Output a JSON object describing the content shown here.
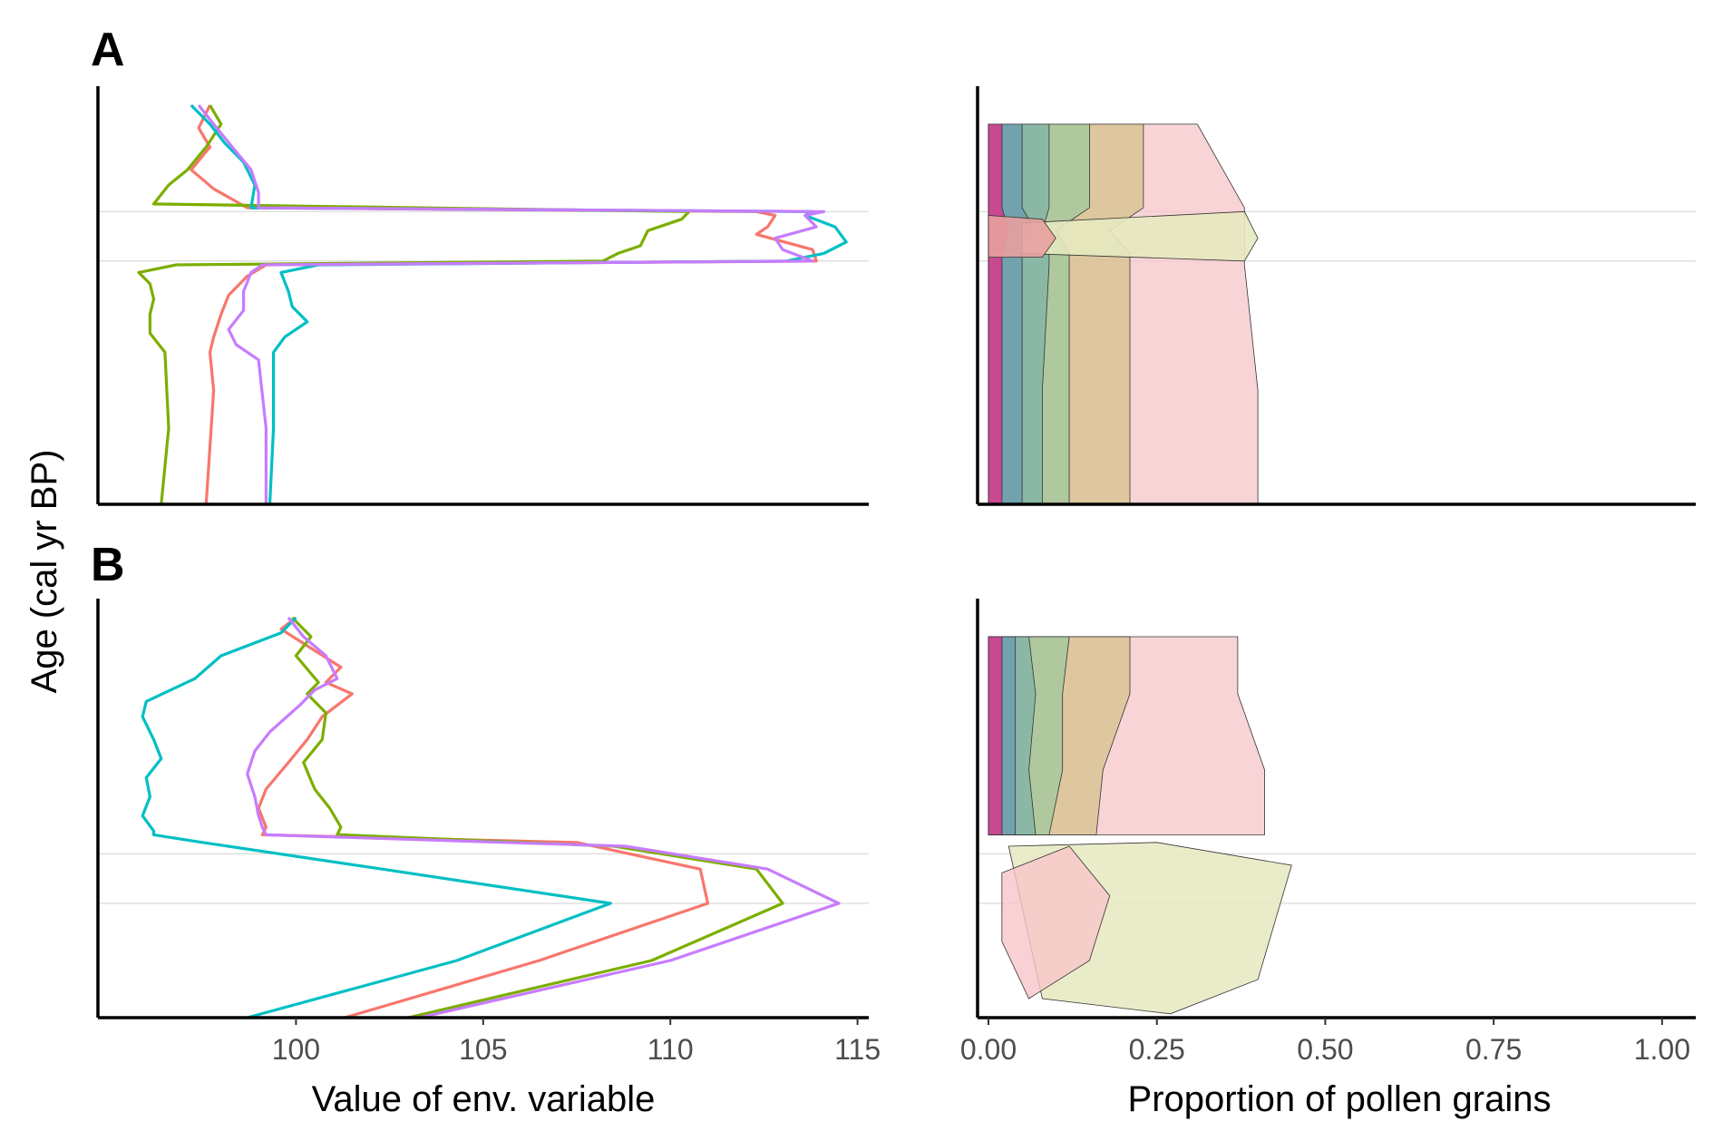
{
  "figure": {
    "ylabel": "Age (cal yr BP)",
    "xlabel_left": "Value of env. variable",
    "xlabel_right": "Proportion of pollen grains",
    "panel_a": "A",
    "panel_b": "B"
  },
  "colors": {
    "red": "#F8766D",
    "green": "#7CAE00",
    "cyan": "#00BFC4",
    "purple": "#C77CFF",
    "axis": "#000000",
    "refline": "#d9d9d9",
    "pollen": [
      "#e7298a",
      "#c51b7d",
      "#b2abd2",
      "#8e6fa1",
      "#6a9bb0",
      "#7fb3a8",
      "#9fc89c",
      "#d4c38c",
      "#f7c6c9",
      "#e6e9bf"
    ]
  },
  "chart_data": [
    {
      "type": "line",
      "panel": "A",
      "xlim": [
        95,
        115.3
      ],
      "xticks": [
        "100",
        "105",
        "110",
        "115"
      ],
      "y_reference": [
        0.77,
        0.64
      ],
      "series": [
        {
          "color": "red",
          "x": [
            97.7,
            97.4,
            97.7,
            97.2,
            97.8,
            98.7,
            112.3,
            112.8,
            112.6,
            112.3,
            113.8,
            113.9,
            99.2,
            98.7,
            98.2,
            98.0,
            97.8,
            97.7,
            97.8,
            97.7,
            97.6
          ],
          "y": [
            1.05,
            0.99,
            0.94,
            0.88,
            0.83,
            0.78,
            0.77,
            0.76,
            0.73,
            0.71,
            0.67,
            0.64,
            0.63,
            0.6,
            0.55,
            0.5,
            0.44,
            0.4,
            0.3,
            0.15,
            0.0
          ]
        },
        {
          "color": "green",
          "x": [
            97.7,
            98.0,
            97.6,
            97.1,
            96.6,
            96.2,
            110.5,
            110.3,
            109.4,
            109.2,
            108.6,
            108.2,
            96.8,
            95.8,
            96.1,
            96.2,
            96.1,
            96.1,
            96.5,
            96.6,
            96.4
          ],
          "y": [
            1.05,
            1.0,
            0.94,
            0.88,
            0.84,
            0.79,
            0.77,
            0.75,
            0.72,
            0.68,
            0.66,
            0.64,
            0.63,
            0.61,
            0.58,
            0.54,
            0.5,
            0.45,
            0.4,
            0.2,
            0.0
          ]
        },
        {
          "color": "cyan",
          "x": [
            97.2,
            97.7,
            98.1,
            98.6,
            98.9,
            98.8,
            113.8,
            113.6,
            114.4,
            114.7,
            114.1,
            113.1,
            100.6,
            99.6,
            99.8,
            99.9,
            100.3,
            99.7,
            99.4,
            99.4,
            99.3
          ],
          "y": [
            1.05,
            1.0,
            0.95,
            0.9,
            0.84,
            0.78,
            0.77,
            0.76,
            0.73,
            0.69,
            0.66,
            0.64,
            0.63,
            0.61,
            0.56,
            0.52,
            0.48,
            0.44,
            0.4,
            0.2,
            0.0
          ]
        },
        {
          "color": "purple",
          "x": [
            97.4,
            97.8,
            98.3,
            98.8,
            99.0,
            99.0,
            114.1,
            113.6,
            113.9,
            112.8,
            113.0,
            113.8,
            99.1,
            98.8,
            98.6,
            98.6,
            98.2,
            98.4,
            99.0,
            99.2,
            99.2
          ],
          "y": [
            1.05,
            1.0,
            0.94,
            0.88,
            0.82,
            0.78,
            0.77,
            0.76,
            0.73,
            0.7,
            0.67,
            0.64,
            0.63,
            0.61,
            0.56,
            0.51,
            0.46,
            0.42,
            0.38,
            0.2,
            0.0
          ]
        }
      ]
    },
    {
      "type": "area",
      "panel": "A",
      "xlim": [
        0,
        1.05
      ],
      "xticks": [
        "0.00",
        "0.25",
        "0.50",
        "0.75",
        "1.00"
      ],
      "y_reference": [
        0.77,
        0.64
      ],
      "stack_tops": [
        {
          "color": "pollen.0",
          "x": [
            0.02,
            0.02,
            0.03,
            0.02,
            0.02,
            0.02,
            0.02
          ],
          "y": [
            1.0,
            0.78,
            0.72,
            0.66,
            0.63,
            0.3,
            0.0
          ]
        },
        {
          "color": "pollen.4",
          "x": [
            0.05,
            0.05,
            0.07,
            0.05,
            0.05,
            0.05,
            0.05
          ],
          "y": [
            1.0,
            0.78,
            0.72,
            0.66,
            0.63,
            0.3,
            0.0
          ]
        },
        {
          "color": "pollen.5",
          "x": [
            0.09,
            0.09,
            0.08,
            0.09,
            0.09,
            0.08,
            0.08
          ],
          "y": [
            1.0,
            0.78,
            0.72,
            0.66,
            0.63,
            0.3,
            0.0
          ]
        },
        {
          "color": "pollen.6",
          "x": [
            0.15,
            0.15,
            0.1,
            0.12,
            0.12,
            0.12,
            0.12
          ],
          "y": [
            1.0,
            0.78,
            0.72,
            0.66,
            0.63,
            0.3,
            0.0
          ]
        },
        {
          "color": "pollen.7",
          "x": [
            0.23,
            0.23,
            0.18,
            0.21,
            0.21,
            0.21,
            0.21
          ],
          "y": [
            1.0,
            0.78,
            0.72,
            0.66,
            0.63,
            0.3,
            0.0
          ]
        },
        {
          "color": "pollen.8",
          "x": [
            0.31,
            0.38,
            0.38,
            0.38,
            0.38,
            0.4,
            0.4
          ],
          "y": [
            1.0,
            0.78,
            0.72,
            0.66,
            0.63,
            0.3,
            0.0
          ]
        }
      ]
    },
    {
      "type": "line",
      "panel": "B",
      "xlim": [
        95,
        115.3
      ],
      "xticks": [
        "100",
        "105",
        "110",
        "115"
      ],
      "y_reference": [
        0.43,
        0.3
      ],
      "series": [
        {
          "color": "red",
          "x": [
            100.0,
            99.6,
            100.4,
            101.2,
            100.8,
            101.5,
            100.7,
            100.3,
            99.8,
            99.2,
            99.0,
            99.2,
            99.1,
            107.5,
            110.8,
            111.0,
            106.5,
            101.3
          ],
          "y": [
            1.05,
            1.02,
            0.97,
            0.92,
            0.88,
            0.85,
            0.79,
            0.73,
            0.67,
            0.6,
            0.55,
            0.5,
            0.48,
            0.46,
            0.39,
            0.3,
            0.15,
            0.0
          ]
        },
        {
          "color": "green",
          "x": [
            99.9,
            100.4,
            100.0,
            100.6,
            100.3,
            100.8,
            100.7,
            100.2,
            100.5,
            100.9,
            101.2,
            101.1,
            101.2,
            108.5,
            112.3,
            113.0,
            109.5,
            103.0
          ],
          "y": [
            1.05,
            1.0,
            0.95,
            0.88,
            0.85,
            0.8,
            0.73,
            0.67,
            0.6,
            0.55,
            0.5,
            0.48,
            0.48,
            0.45,
            0.39,
            0.3,
            0.15,
            0.0
          ]
        },
        {
          "color": "cyan",
          "x": [
            100.0,
            99.6,
            98.0,
            97.3,
            96.0,
            95.9,
            96.2,
            96.4,
            96.0,
            96.1,
            95.9,
            96.2,
            96.2,
            97.5,
            102.3,
            108.4,
            104.3,
            98.7
          ],
          "y": [
            1.05,
            1.01,
            0.95,
            0.89,
            0.83,
            0.79,
            0.73,
            0.68,
            0.63,
            0.58,
            0.53,
            0.49,
            0.48,
            0.46,
            0.39,
            0.3,
            0.15,
            0.0
          ]
        },
        {
          "color": "purple",
          "x": [
            99.8,
            100.2,
            100.8,
            101.1,
            100.5,
            100.1,
            99.3,
            98.9,
            98.7,
            98.9,
            99.0,
            99.1,
            99.2,
            108.8,
            112.6,
            114.5,
            110.0,
            103.3
          ],
          "y": [
            1.05,
            1.0,
            0.95,
            0.89,
            0.86,
            0.82,
            0.75,
            0.7,
            0.64,
            0.58,
            0.53,
            0.5,
            0.48,
            0.45,
            0.39,
            0.3,
            0.15,
            0.0
          ]
        }
      ]
    },
    {
      "type": "area",
      "panel": "B",
      "xlim": [
        0,
        1.05
      ],
      "xticks": [
        "0.00",
        "0.25",
        "0.50",
        "0.75",
        "1.00"
      ],
      "y_reference": [
        0.43,
        0.3
      ],
      "stack_tops": [
        {
          "color": "pollen.0",
          "x": [
            0.02,
            0.02,
            0.02,
            0.02
          ],
          "y": [
            1.0,
            0.85,
            0.65,
            0.48
          ]
        },
        {
          "color": "pollen.4",
          "x": [
            0.04,
            0.04,
            0.04,
            0.04
          ],
          "y": [
            1.0,
            0.85,
            0.65,
            0.48
          ]
        },
        {
          "color": "pollen.5",
          "x": [
            0.06,
            0.07,
            0.06,
            0.07
          ],
          "y": [
            1.0,
            0.85,
            0.65,
            0.48
          ]
        },
        {
          "color": "pollen.6",
          "x": [
            0.12,
            0.11,
            0.11,
            0.09
          ],
          "y": [
            1.0,
            0.85,
            0.65,
            0.48
          ]
        },
        {
          "color": "pollen.7",
          "x": [
            0.21,
            0.21,
            0.17,
            0.16
          ],
          "y": [
            1.0,
            0.85,
            0.65,
            0.48
          ]
        },
        {
          "color": "pollen.8",
          "x": [
            0.37,
            0.37,
            0.41,
            0.41
          ],
          "y": [
            1.0,
            0.85,
            0.65,
            0.48
          ]
        }
      ]
    }
  ]
}
